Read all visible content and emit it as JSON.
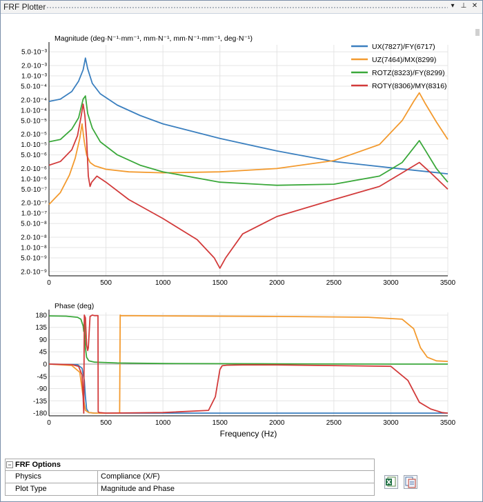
{
  "window": {
    "title": "FRF Plotter",
    "buttons": [
      "▾",
      "⊥",
      "✕"
    ]
  },
  "chart_data": [
    {
      "type": "line",
      "title": "Magnitude (deg·N⁻¹·mm⁻¹, mm·N⁻¹, mm·N⁻¹·mm⁻¹, deg·N⁻¹)",
      "xlabel": "",
      "ylabel": "Magnitude (deg·N⁻¹·mm⁻¹, mm·N⁻¹, mm·N⁻¹·mm⁻¹, deg·N⁻¹)",
      "yscale": "log",
      "xlim": [
        0,
        3500
      ],
      "ylim": [
        1.5e-09,
        0.008
      ],
      "grid": true,
      "legend_position": "top-right",
      "x_ticks": [
        0,
        500,
        1000,
        1500,
        2000,
        2500,
        3000,
        3500
      ],
      "y_ticks": [
        {
          "v": 0.005,
          "label": "5.0·10⁻³"
        },
        {
          "v": 0.002,
          "label": "2.0·10⁻³"
        },
        {
          "v": 0.001,
          "label": "1.0·10⁻³"
        },
        {
          "v": 0.0005,
          "label": "5.0·10⁻⁴"
        },
        {
          "v": 0.0002,
          "label": "2.0·10⁻⁴"
        },
        {
          "v": 0.0001,
          "label": "1.0·10⁻⁴"
        },
        {
          "v": 5e-05,
          "label": "5.0·10⁻⁵"
        },
        {
          "v": 2e-05,
          "label": "2.0·10⁻⁵"
        },
        {
          "v": 1e-05,
          "label": "1.0·10⁻⁵"
        },
        {
          "v": 5e-06,
          "label": "5.0·10⁻⁶"
        },
        {
          "v": 2e-06,
          "label": "2.0·10⁻⁶"
        },
        {
          "v": 1e-06,
          "label": "1.0·10⁻⁶"
        },
        {
          "v": 5e-07,
          "label": "5.0·10⁻⁷"
        },
        {
          "v": 2e-07,
          "label": "2.0·10⁻⁷"
        },
        {
          "v": 1e-07,
          "label": "1.0·10⁻⁷"
        },
        {
          "v": 5e-08,
          "label": "5.0·10⁻⁸"
        },
        {
          "v": 2e-08,
          "label": "2.0·10⁻⁸"
        },
        {
          "v": 1e-08,
          "label": "1.0·10⁻⁸"
        },
        {
          "v": 5e-09,
          "label": "5.0·10⁻⁹"
        },
        {
          "v": 2e-09,
          "label": "2.0·10⁻⁹"
        }
      ],
      "series": [
        {
          "name": "UX(7827)/FY(6717)",
          "color": "#3a7fbf",
          "x": [
            0,
            100,
            200,
            260,
            300,
            320,
            340,
            380,
            450,
            600,
            800,
            1000,
            1500,
            2000,
            2500,
            3000,
            3500
          ],
          "y": [
            0.00018,
            0.00021,
            0.00035,
            0.0007,
            0.0015,
            0.0033,
            0.0016,
            0.0006,
            0.0003,
            0.00014,
            7e-05,
            4e-05,
            1.5e-05,
            6.5e-06,
            3.2e-06,
            2.1e-06,
            1.4e-06
          ]
        },
        {
          "name": "UZ(7464)/MX(8299)",
          "color": "#f39a2e",
          "x": [
            0,
            100,
            180,
            230,
            270,
            290,
            310,
            330,
            360,
            400,
            500,
            700,
            1000,
            1500,
            2000,
            2500,
            2900,
            3100,
            3200,
            3250,
            3300,
            3400,
            3500
          ],
          "y": [
            1.8e-07,
            4e-07,
            1.3e-06,
            4e-06,
            1.5e-05,
            4e-05,
            1.2e-05,
            5e-06,
            3e-06,
            2.4e-06,
            1.9e-06,
            1.6e-06,
            1.5e-06,
            1.6e-06,
            2e-06,
            3.4e-06,
            1e-05,
            5e-05,
            0.00018,
            0.00032,
            0.00016,
            4.5e-05,
            1.4e-05
          ]
        },
        {
          "name": "ROTZ(8323)/FY(8299)",
          "color": "#3aa83a",
          "x": [
            0,
            100,
            200,
            260,
            300,
            320,
            340,
            380,
            450,
            600,
            800,
            1000,
            1500,
            2000,
            2500,
            2900,
            3100,
            3200,
            3250,
            3300,
            3400,
            3500
          ],
          "y": [
            1.2e-05,
            1.4e-05,
            2.8e-05,
            6e-05,
            0.00021,
            0.00026,
            8e-05,
            3e-05,
            1.2e-05,
            5e-06,
            2.5e-06,
            1.6e-06,
            8e-07,
            6.5e-07,
            7e-07,
            1.2e-06,
            3e-06,
            8e-06,
            1.3e-05,
            7e-06,
            2e-06,
            8e-07
          ]
        },
        {
          "name": "ROTY(8306)/MY(8316)",
          "color": "#d23a3a",
          "x": [
            0,
            100,
            200,
            250,
            280,
            300,
            315,
            330,
            345,
            360,
            375,
            420,
            500,
            700,
            1000,
            1300,
            1450,
            1500,
            1550,
            1700,
            2000,
            2500,
            2900,
            3100,
            3250,
            3350,
            3500
          ],
          "y": [
            2.5e-06,
            3.2e-06,
            7e-06,
            1.8e-05,
            6e-05,
            0.00015,
            7e-05,
            1.5e-05,
            1.2e-06,
            6e-07,
            8e-07,
            1.2e-06,
            8e-07,
            2.5e-07,
            7e-08,
            1.7e-08,
            5e-09,
            2.5e-09,
            5e-09,
            2.5e-08,
            8e-08,
            2.5e-07,
            6e-07,
            1.5e-06,
            3e-06,
            1.5e-06,
            5e-07
          ]
        }
      ]
    },
    {
      "type": "line",
      "title": "Phase (deg)",
      "xlabel": "Frequency (Hz)",
      "ylabel": "Phase (deg)",
      "xlim": [
        0,
        3500
      ],
      "ylim": [
        -190,
        190
      ],
      "grid": true,
      "x_ticks": [
        0,
        500,
        1000,
        1500,
        2000,
        2500,
        3000,
        3500
      ],
      "y_ticks": [
        {
          "v": 180,
          "label": "180"
        },
        {
          "v": 135,
          "label": "135"
        },
        {
          "v": 90,
          "label": "90"
        },
        {
          "v": 45,
          "label": "45"
        },
        {
          "v": 0,
          "label": "0"
        },
        {
          "v": -45,
          "label": "-45"
        },
        {
          "v": -90,
          "label": "-90"
        },
        {
          "v": -135,
          "label": "-135"
        },
        {
          "v": -180,
          "label": "-180"
        }
      ],
      "series": [
        {
          "name": "UX(7827)/FY(6717)",
          "color": "#3a7fbf",
          "x": [
            0,
            250,
            290,
            310,
            320,
            330,
            350,
            400,
            3500
          ],
          "y": [
            0,
            -2,
            -15,
            -60,
            -120,
            -165,
            -178,
            -180,
            -180
          ]
        },
        {
          "name": "UZ(7464)/MX(8299)",
          "color": "#f39a2e",
          "x": [
            0,
            200,
            270,
            300,
            320,
            350,
            400,
            500,
            600,
            620,
            625,
            630,
            1000,
            2000,
            2800,
            3100,
            3200,
            3260,
            3320,
            3400,
            3500
          ],
          "y": [
            0,
            -5,
            -30,
            -120,
            -170,
            -178,
            -180,
            -180,
            -180,
            -180,
            180,
            178,
            177,
            175,
            172,
            165,
            130,
            60,
            25,
            12,
            10
          ]
        },
        {
          "name": "ROTZ(8323)/FY(8299)",
          "color": "#3aa83a",
          "x": [
            0,
            150,
            250,
            280,
            300,
            305,
            310,
            320,
            330,
            350,
            400,
            600,
            1000,
            2000,
            3000,
            3500
          ],
          "y": [
            177,
            176,
            172,
            165,
            140,
            120,
            155,
            60,
            25,
            12,
            7,
            4,
            2,
            1,
            0,
            0
          ]
        },
        {
          "name": "ROTY(8306)/MY(8316)",
          "color": "#d23a3a",
          "x": [
            0,
            200,
            260,
            290,
            300,
            305,
            310,
            320,
            330,
            340,
            345,
            360,
            380,
            400,
            420,
            430,
            432,
            440,
            500,
            1000,
            1400,
            1460,
            1500,
            1520,
            1560,
            1700,
            2000,
            3000,
            3150,
            3250,
            3350,
            3450,
            3500
          ],
          "y": [
            0,
            -2,
            -8,
            -40,
            -120,
            -180,
            180,
            170,
            70,
            50,
            60,
            175,
            180,
            178,
            178,
            178,
            -175,
            -178,
            -180,
            -178,
            -170,
            -120,
            -20,
            -6,
            -4,
            -3,
            -3,
            -8,
            -60,
            -140,
            -165,
            -178,
            -180
          ]
        }
      ]
    }
  ],
  "options": {
    "header": "FRF Options",
    "toggle": "−",
    "rows": [
      {
        "label": "Physics",
        "value": "Compliance (X/F)"
      },
      {
        "label": "Plot Type",
        "value": "Magnitude and Phase"
      }
    ]
  }
}
